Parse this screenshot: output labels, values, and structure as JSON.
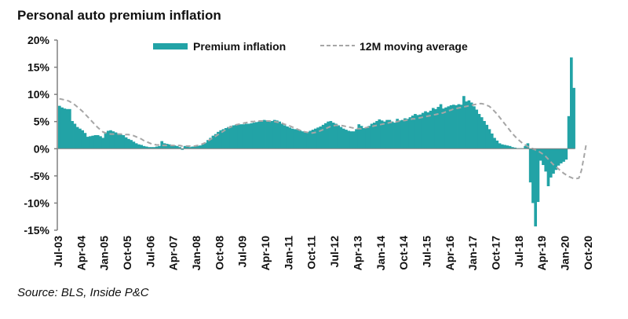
{
  "chart_data": {
    "type": "bar",
    "title": "Personal auto premium inflation",
    "source": "Source: BLS, Inside P&C",
    "xlabel": "",
    "ylabel": "",
    "ylim": [
      -15,
      20
    ],
    "y_ticks": [
      20,
      15,
      10,
      5,
      0,
      -5,
      -10,
      -15
    ],
    "y_tick_labels": [
      "20%",
      "15%",
      "10%",
      "5%",
      "0%",
      "-5%",
      "-10%",
      "-15%"
    ],
    "x_start": "Jul-03",
    "x_tick_labels": [
      "Jul-03",
      "Apr-04",
      "Jan-05",
      "Oct-05",
      "Jul-06",
      "Apr-07",
      "Jan-08",
      "Oct-08",
      "Jul-09",
      "Apr-10",
      "Jan-11",
      "Oct-11",
      "Jul-12",
      "Apr-13",
      "Jan-14",
      "Oct-14",
      "Jul-15",
      "Apr-16",
      "Jan-17",
      "Oct-17",
      "Jul-18",
      "Apr-19",
      "Jan-20",
      "Oct-20"
    ],
    "x_tick_interval_months": 9,
    "legend": {
      "placement": "top-center"
    },
    "grid": false,
    "colors": {
      "bars": "#22A3A6",
      "moving_average": "#A6A6A6"
    },
    "series": [
      {
        "name": "Premium inflation",
        "type": "bar",
        "frequency": "monthly",
        "values": [
          7.9,
          7.6,
          7.4,
          7.3,
          7.3,
          5.1,
          4.6,
          4.0,
          3.7,
          3.4,
          2.9,
          2.2,
          2.3,
          2.4,
          2.5,
          2.5,
          2.3,
          2.0,
          3.0,
          3.3,
          3.4,
          3.2,
          3.0,
          2.8,
          2.6,
          2.5,
          2.1,
          1.8,
          1.6,
          1.3,
          1.0,
          0.8,
          0.7,
          0.5,
          0.4,
          0.3,
          0.3,
          0.3,
          0.4,
          0.5,
          1.4,
          1.0,
          0.9,
          0.8,
          0.7,
          0.6,
          0.5,
          0.3,
          -0.2,
          0.5,
          0.4,
          0.3,
          0.4,
          0.4,
          0.5,
          0.6,
          0.8,
          1.1,
          1.6,
          2.0,
          2.4,
          2.7,
          3.1,
          3.4,
          3.6,
          3.8,
          4.0,
          4.2,
          4.3,
          4.4,
          4.4,
          4.5,
          4.5,
          4.6,
          4.6,
          4.7,
          4.8,
          4.9,
          5.0,
          5.1,
          5.3,
          5.2,
          5.2,
          5.1,
          5.3,
          5.2,
          5.0,
          4.6,
          4.3,
          4.1,
          3.9,
          3.7,
          3.6,
          3.5,
          3.4,
          3.2,
          3.0,
          3.1,
          3.3,
          3.5,
          3.7,
          3.9,
          4.1,
          4.4,
          4.7,
          5.0,
          5.1,
          4.8,
          4.6,
          4.3,
          4.0,
          3.7,
          3.5,
          3.3,
          3.2,
          3.2,
          3.6,
          4.5,
          4.2,
          3.8,
          3.9,
          4.2,
          4.6,
          4.8,
          5.1,
          5.4,
          5.2,
          5.0,
          5.3,
          5.3,
          5.0,
          4.8,
          5.5,
          5.2,
          5.3,
          5.6,
          5.5,
          5.8,
          6.1,
          6.4,
          6.2,
          6.3,
          6.6,
          6.9,
          6.7,
          7.0,
          7.5,
          7.3,
          7.7,
          8.2,
          7.4,
          7.6,
          7.8,
          8.0,
          8.1,
          8.0,
          8.2,
          8.1,
          9.7,
          8.7,
          8.9,
          8.5,
          7.8,
          7.2,
          6.4,
          5.8,
          5.1,
          4.4,
          3.6,
          2.8,
          2.0,
          1.5,
          1.0,
          0.8,
          0.7,
          0.6,
          0.5,
          0.3,
          0.2,
          0.1,
          0.1,
          0.1,
          0.5,
          1.0,
          -6.2,
          -10.0,
          -14.3,
          -9.8,
          -2.2,
          -3.0,
          -4.2,
          -6.9,
          -5.3,
          -4.6,
          -3.9,
          -3.1,
          -2.7,
          -2.4,
          -2.0,
          6.0,
          16.8,
          11.2
        ],
        "legend_marker": "bar"
      },
      {
        "name": "12M moving average",
        "type": "line",
        "style": "dashed",
        "frequency": "monthly",
        "values": [
          9.2,
          9.1,
          9.0,
          8.9,
          8.7,
          8.4,
          8.1,
          7.7,
          7.3,
          6.9,
          6.4,
          5.9,
          5.4,
          4.9,
          4.4,
          3.9,
          3.5,
          3.1,
          2.9,
          2.8,
          2.7,
          2.7,
          2.7,
          2.7,
          2.7,
          2.7,
          2.6,
          2.6,
          2.5,
          2.4,
          2.2,
          2.0,
          1.8,
          1.5,
          1.3,
          1.1,
          0.9,
          0.8,
          0.7,
          0.7,
          0.6,
          0.6,
          0.6,
          0.6,
          0.6,
          0.6,
          0.6,
          0.6,
          0.5,
          0.5,
          0.5,
          0.5,
          0.5,
          0.5,
          0.6,
          0.7,
          0.9,
          1.1,
          1.4,
          1.7,
          2.0,
          2.3,
          2.6,
          2.9,
          3.2,
          3.5,
          3.8,
          4.0,
          4.2,
          4.4,
          4.5,
          4.6,
          4.7,
          4.8,
          4.9,
          5.0,
          5.0,
          5.1,
          5.1,
          5.1,
          5.1,
          5.1,
          5.1,
          5.0,
          5.0,
          4.9,
          4.8,
          4.7,
          4.5,
          4.4,
          4.2,
          4.0,
          3.8,
          3.6,
          3.4,
          3.2,
          3.1,
          3.0,
          2.9,
          2.9,
          3.0,
          3.1,
          3.3,
          3.5,
          3.7,
          3.9,
          4.1,
          4.2,
          4.3,
          4.3,
          4.3,
          4.2,
          4.1,
          4.0,
          3.9,
          3.8,
          3.7,
          3.7,
          3.7,
          3.8,
          3.9,
          4.0,
          4.1,
          4.2,
          4.3,
          4.4,
          4.5,
          4.6,
          4.7,
          4.8,
          4.9,
          4.9,
          5.0,
          5.1,
          5.2,
          5.2,
          5.3,
          5.4,
          5.5,
          5.5,
          5.6,
          5.7,
          5.8,
          5.9,
          6.0,
          6.1,
          6.2,
          6.3,
          6.4,
          6.5,
          6.6,
          6.8,
          7.0,
          7.1,
          7.3,
          7.4,
          7.5,
          7.6,
          7.7,
          7.8,
          7.9,
          8.0,
          8.1,
          8.2,
          8.3,
          8.3,
          8.2,
          8.0,
          7.8,
          7.4,
          6.9,
          6.4,
          5.8,
          5.2,
          4.6,
          4.0,
          3.4,
          2.8,
          2.3,
          1.8,
          1.4,
          1.0,
          0.7,
          0.4,
          0.2,
          0.0,
          -0.2,
          -0.4,
          -0.7,
          -1.0,
          -1.4,
          -1.9,
          -2.4,
          -2.9,
          -3.3,
          -3.7,
          -4.1,
          -4.5,
          -4.8,
          -5.1,
          -5.3,
          -5.5,
          -5.5,
          -5.4,
          -4.0,
          -1.5,
          1.2
        ],
        "legend_marker": "dashed-line"
      }
    ]
  }
}
